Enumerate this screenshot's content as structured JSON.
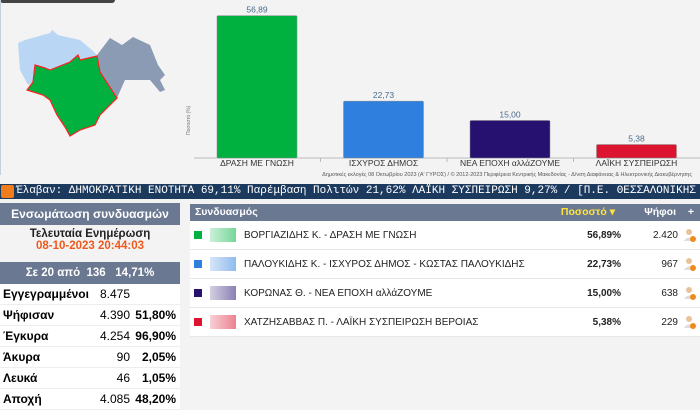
{
  "chart_data": {
    "type": "bar",
    "categories": [
      "ΔΡΑΣΗ ΜΕ ΓΝΩΣΗ",
      "ΙΣΧΥΡΟΣ ΔΗΜΟΣ",
      "ΝΕΑ ΕΠΟΧΗ αλλάΖΟΥΜΕ",
      "ΛΑΪΚΗ ΣΥΣΠΕΙΡΩΣΗ"
    ],
    "values": [
      56.89,
      22.73,
      15.0,
      5.38
    ],
    "labels": [
      "56,89",
      "22,73",
      "15,00",
      "5,38"
    ],
    "colors": [
      "#00b140",
      "#2f80de",
      "#261070",
      "#dc1430"
    ],
    "ylabel": "Ποσοστό (%)",
    "ylim": [
      0,
      60
    ],
    "grid": false
  },
  "caption": "Δημοτικές εκλογές 08 Οκτωβρίου 2023 (Α' ΓΥΡΟΣ) / © 2012-2023 Περιφέρεια Κεντρικής Μακεδονίας - Δ/νση Διαφάνειας & Ηλεκτρονικής Διακυβέρνησης",
  "ticker": "Έλαβαν: ΔΗΜΟΚΡΑΤΙΚΗ ΕΝΟΤΗΤΑ 69,11%  Παρέμβαση Πολιτών 21,62%  ΛΑΪΚΗ ΣΥΣΠΕΙΡΩΣΗ 9,27%  /  [Π.Ε. ΘΕΣΣΑΛΟΝΙΚΗΣ",
  "left": {
    "title": "Ενσωμάτωση συνδυασμών",
    "update_label": "Τελευταία Ενημέρωση",
    "update_time": "08-10-2023 20:44:03",
    "progress": "Σε 20 από  136   14,71%",
    "stats": [
      {
        "name": "Εγγεγραμμένοι",
        "value": "8.475",
        "pct": ""
      },
      {
        "name": "Ψήφισαν",
        "value": "4.390",
        "pct": "51,80%"
      },
      {
        "name": "Έγκυρα",
        "value": "4.254",
        "pct": "96,90%"
      },
      {
        "name": "Άκυρα",
        "value": "90",
        "pct": "2,05%"
      },
      {
        "name": "Λευκά",
        "value": "46",
        "pct": "1,05%"
      },
      {
        "name": "Αποχή",
        "value": "4.085",
        "pct": "48,20%"
      }
    ]
  },
  "right": {
    "col_party": "Συνδυασμός",
    "col_pct": "Ποσοστό",
    "col_votes": "Ψήφοι",
    "plus": "+",
    "rows": [
      {
        "name": "ΒΟΡΓΙΑΖΙΔΗΣ Κ. - ΔΡΑΣΗ ΜΕ ΓΝΩΣΗ",
        "pct": "56,89%",
        "votes": "2.420",
        "color": "#00b140"
      },
      {
        "name": "ΠΑΛΟΥΚΙΔΗΣ Κ. - ΙΣΧΥΡΟΣ ΔΗΜΟΣ - ΚΩΣΤΑΣ ΠΑΛΟΥΚΙΔΗΣ",
        "pct": "22,73%",
        "votes": "967",
        "color": "#2f80de"
      },
      {
        "name": "ΚΟΡΩΝΑΣ Θ. - ΝΕΑ ΕΠΟΧΗ αλλάΖΟΥΜΕ",
        "pct": "15,00%",
        "votes": "638",
        "color": "#261070"
      },
      {
        "name": "ΧΑΤΖΗΣΑΒΒΑΣ Π. - ΛΑΪΚΗ ΣΥΣΠΕΙΡΩΣΗ ΒΕΡΟΙΑΣ",
        "pct": "5,38%",
        "votes": "229",
        "color": "#dc1430"
      }
    ]
  }
}
